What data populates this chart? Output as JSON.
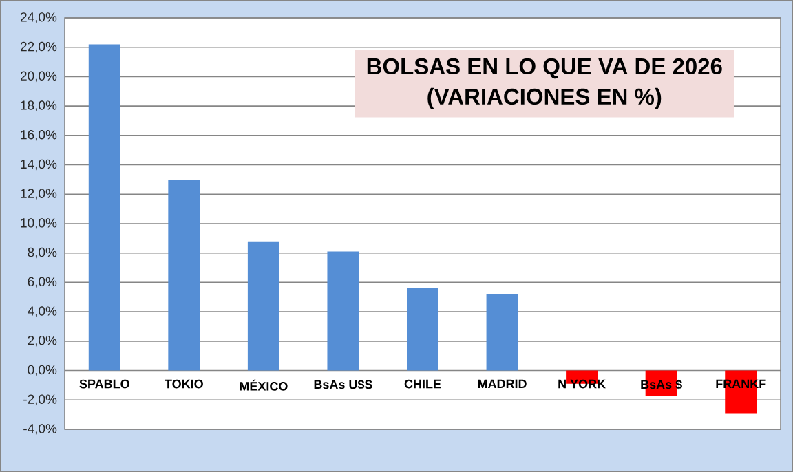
{
  "chart_data": {
    "type": "bar",
    "title": "BOLSAS EN LO QUE VA DE 2026",
    "subtitle": "(VARIACIONES EN %)",
    "categories": [
      "SPABLO",
      "TOKIO",
      "MÉXICO",
      "BsAs U$S",
      "CHILE",
      "MADRID",
      "N YORK",
      "BsAs $",
      "FRANKF"
    ],
    "values": [
      22.2,
      13.0,
      8.8,
      8.1,
      5.6,
      5.2,
      -0.9,
      -1.7,
      -2.9
    ],
    "colors": [
      "#558ed5",
      "#558ed5",
      "#558ed5",
      "#558ed5",
      "#558ed5",
      "#558ed5",
      "#ff0000",
      "#ff0000",
      "#ff0000"
    ],
    "ylim": [
      -4,
      24
    ],
    "yticks": [
      {
        "value": -4,
        "label": "-4,0%"
      },
      {
        "value": -2,
        "label": "-2,0%"
      },
      {
        "value": 0,
        "label": "0,0%"
      },
      {
        "value": 2,
        "label": "2,0%"
      },
      {
        "value": 4,
        "label": "4,0%"
      },
      {
        "value": 6,
        "label": "6,0%"
      },
      {
        "value": 8,
        "label": "8,0%"
      },
      {
        "value": 10,
        "label": "10,0%"
      },
      {
        "value": 12,
        "label": "12,0%"
      },
      {
        "value": 14,
        "label": "14,0%"
      },
      {
        "value": 16,
        "label": "16,0%"
      },
      {
        "value": 18,
        "label": "18,0%"
      },
      {
        "value": 20,
        "label": "20,0%"
      },
      {
        "value": 22,
        "label": "22,0%"
      },
      {
        "value": 24,
        "label": "24,0%"
      }
    ],
    "grid": "y"
  }
}
